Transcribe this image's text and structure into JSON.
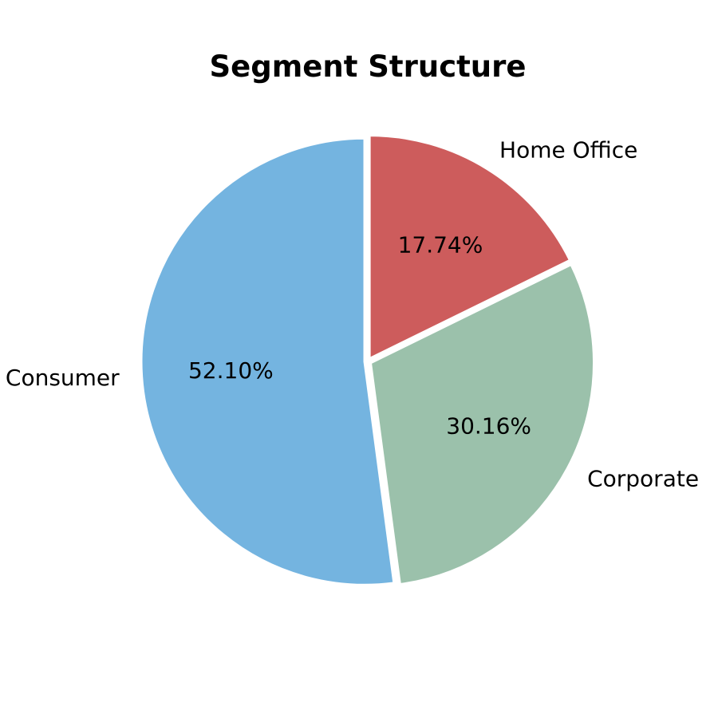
{
  "chart_data": {
    "type": "pie",
    "title": "Segment Structure",
    "categories": [
      "Consumer",
      "Corporate",
      "Home Office"
    ],
    "values": [
      52.1,
      30.16,
      17.74
    ],
    "value_labels": [
      "52.10%",
      "30.16%",
      "17.74%"
    ],
    "colors": [
      "#74b4e0",
      "#9bc1ab",
      "#cd5c5c"
    ],
    "wedge_edge_color": "#ffffff",
    "start": "top",
    "direction": "counterclockwise",
    "legend": "none"
  }
}
